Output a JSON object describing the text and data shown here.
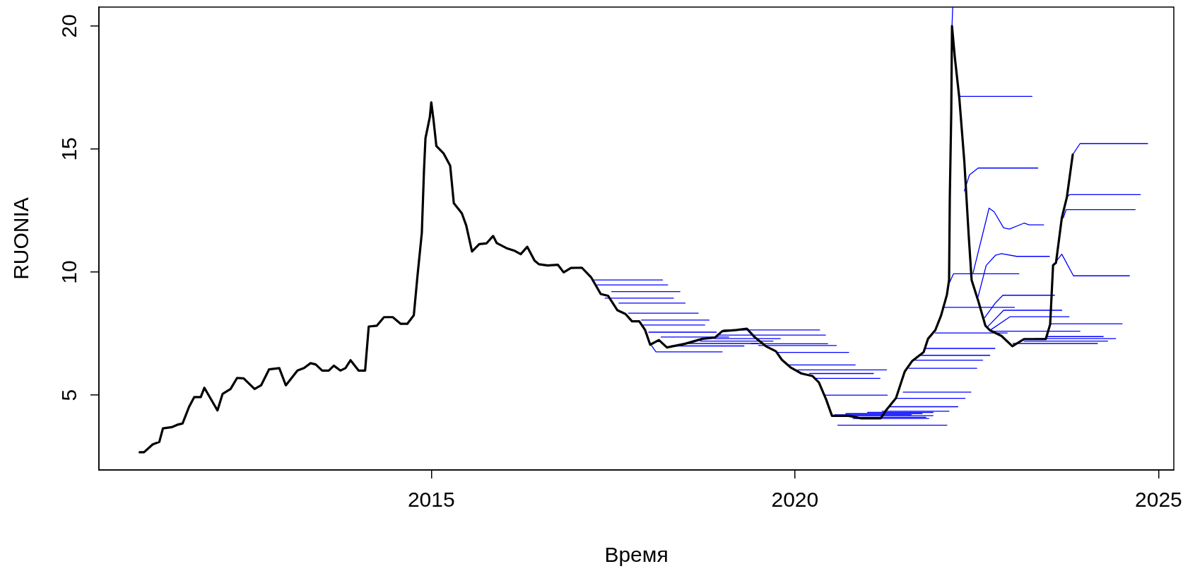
{
  "chart_data": {
    "type": "line",
    "xlabel": "Время",
    "ylabel": "RUONIA",
    "xlim": [
      2010.43,
      2025.21
    ],
    "ylim": [
      1.96,
      20.77
    ],
    "xticks": [
      2015,
      2020,
      2025
    ],
    "yticks": [
      5,
      10,
      15,
      20
    ],
    "grid": false,
    "legend": false,
    "series": [
      {
        "color": "#000000",
        "x": [
          2010.99,
          2011.05,
          2011.17,
          2011.26,
          2011.31,
          2011.43,
          2011.51,
          2011.58,
          2011.67,
          2011.74,
          2011.83,
          2011.88,
          2012.06,
          2012.13,
          2012.24,
          2012.33,
          2012.42,
          2012.57,
          2012.66,
          2012.77,
          2012.91,
          2013.0,
          2013.16,
          2013.25,
          2013.34,
          2013.41,
          2013.5,
          2013.59,
          2013.66,
          2013.75,
          2013.82,
          2013.89,
          2014.0,
          2014.09,
          2014.14,
          2014.25,
          2014.35,
          2014.47,
          2014.58,
          2014.67,
          2014.76,
          2014.81,
          2014.87,
          2014.9,
          2014.92,
          2014.98,
          2015.0,
          2015.03,
          2015.07,
          2015.17,
          2015.26,
          2015.31,
          2015.42,
          2015.48,
          2015.56,
          2015.66,
          2015.76,
          2015.85,
          2015.9,
          2016.03,
          2016.15,
          2016.23,
          2016.32,
          2016.42,
          2016.48,
          2016.6,
          2016.74,
          2016.82,
          2016.92,
          2017.07,
          2017.2,
          2017.28,
          2017.33,
          2017.43,
          2017.56,
          2017.67,
          2017.76,
          2017.86,
          2017.94,
          2018.01,
          2018.13,
          2018.24,
          2018.49,
          2018.73,
          2018.9,
          2019.0,
          2019.2,
          2019.34,
          2019.45,
          2019.6,
          2019.74,
          2019.82,
          2019.94,
          2020.09,
          2020.24,
          2020.33,
          2020.43,
          2020.51,
          2020.74,
          2020.91,
          2021.18,
          2021.26,
          2021.39,
          2021.51,
          2021.61,
          2021.77,
          2021.83,
          2021.93,
          2022.01,
          2022.09,
          2022.12,
          2022.13,
          2022.15,
          2022.16,
          2022.2,
          2022.26,
          2022.33,
          2022.39,
          2022.43,
          2022.52,
          2022.62,
          2022.68,
          2022.84,
          2022.99,
          2023.15,
          2023.45,
          2023.51,
          2023.55,
          2023.59,
          2023.67,
          2023.74,
          2023.82
        ],
        "values": [
          2.68,
          2.68,
          3.0,
          3.1,
          3.65,
          3.7,
          3.8,
          3.85,
          4.53,
          4.92,
          4.92,
          5.3,
          4.38,
          5.05,
          5.25,
          5.7,
          5.68,
          5.25,
          5.4,
          6.05,
          6.1,
          5.4,
          6.0,
          6.1,
          6.3,
          6.25,
          6.0,
          6.0,
          6.2,
          6.0,
          6.1,
          6.42,
          6.0,
          6.0,
          7.79,
          7.82,
          8.17,
          8.17,
          7.9,
          7.9,
          8.25,
          9.84,
          11.6,
          14.15,
          15.44,
          16.3,
          16.9,
          16.2,
          15.12,
          14.82,
          14.32,
          12.8,
          12.39,
          11.9,
          10.84,
          11.14,
          11.17,
          11.47,
          11.18,
          10.98,
          10.86,
          10.73,
          11.03,
          10.47,
          10.32,
          10.27,
          10.3,
          9.99,
          10.17,
          10.18,
          9.78,
          9.37,
          9.11,
          9.04,
          8.45,
          8.3,
          8.0,
          8.0,
          7.65,
          7.05,
          7.24,
          6.94,
          7.09,
          7.29,
          7.34,
          7.6,
          7.65,
          7.7,
          7.35,
          6.99,
          6.78,
          6.44,
          6.13,
          5.88,
          5.78,
          5.52,
          4.82,
          4.16,
          4.16,
          4.06,
          4.06,
          4.41,
          4.88,
          5.96,
          6.38,
          6.75,
          7.29,
          7.64,
          8.24,
          9.08,
          9.68,
          13.05,
          16.5,
          20.0,
          18.7,
          17.1,
          14.48,
          11.48,
          9.68,
          8.84,
          7.82,
          7.64,
          7.41,
          6.99,
          7.28,
          7.28,
          7.88,
          10.28,
          10.38,
          12.2,
          13.05,
          14.77
        ]
      },
      {
        "color": "#0000ff",
        "x": [
          2017.22,
          2018.18
        ],
        "values": [
          9.68,
          9.68
        ]
      },
      {
        "color": "#0000ff",
        "x": [
          2017.28,
          2018.25
        ],
        "values": [
          9.48,
          9.48
        ]
      },
      {
        "color": "#0000ff",
        "x": [
          2017.39,
          2018.33
        ],
        "values": [
          8.94,
          8.94
        ]
      },
      {
        "color": "#0000ff",
        "x": [
          2017.48,
          2018.42
        ],
        "values": [
          9.21,
          9.21
        ]
      },
      {
        "color": "#0000ff",
        "x": [
          2017.58,
          2018.49
        ],
        "values": [
          8.74,
          8.74
        ]
      },
      {
        "color": "#0000ff",
        "x": [
          2017.71,
          2018.67
        ],
        "values": [
          8.33,
          8.33
        ]
      },
      {
        "color": "#0000ff",
        "x": [
          2017.89,
          2018.82
        ],
        "values": [
          8.05,
          8.05
        ]
      },
      {
        "color": "#0000ff",
        "x": [
          2017.9,
          2018.76
        ],
        "values": [
          7.85,
          7.85
        ]
      },
      {
        "color": "#0000ff",
        "x": [
          2017.99,
          2018.92
        ],
        "values": [
          7.56,
          7.56
        ]
      },
      {
        "color": "#0000ff",
        "x": [
          2018.16,
          2019.09
        ],
        "values": [
          7.36,
          7.36
        ]
      },
      {
        "color": "#0000ff",
        "x": [
          2018.02,
          2018.09,
          2019.0
        ],
        "values": [
          7.05,
          6.76,
          6.76
        ]
      },
      {
        "color": "#0000ff",
        "x": [
          2018.3,
          2019.3
        ],
        "values": [
          7.0,
          7.0
        ]
      },
      {
        "color": "#0000ff",
        "x": [
          2018.5,
          2019.5
        ],
        "values": [
          7.1,
          7.1
        ]
      },
      {
        "color": "#0000ff",
        "x": [
          2018.7,
          2019.7
        ],
        "values": [
          7.2,
          7.2
        ]
      },
      {
        "color": "#0000ff",
        "x": [
          2018.9,
          2019.8
        ],
        "values": [
          7.3,
          7.3
        ]
      },
      {
        "color": "#0000ff",
        "x": [
          2019.02,
          2020.34
        ],
        "values": [
          7.65,
          7.65
        ]
      },
      {
        "color": "#0000ff",
        "x": [
          2018.93,
          2020.42
        ],
        "values": [
          7.44,
          7.44
        ]
      },
      {
        "color": "#0000ff",
        "x": [
          2019.4,
          2020.45
        ],
        "values": [
          7.09,
          7.09
        ]
      },
      {
        "color": "#0000ff",
        "x": [
          2019.5,
          2020.57
        ],
        "values": [
          7.02,
          7.02
        ]
      },
      {
        "color": "#0000ff",
        "x": [
          2019.74,
          2020.74
        ],
        "values": [
          6.74,
          6.74
        ]
      },
      {
        "color": "#0000ff",
        "x": [
          2019.9,
          2020.83
        ],
        "values": [
          6.23,
          6.23
        ]
      },
      {
        "color": "#0000ff",
        "x": [
          2020.04,
          2021.26
        ],
        "values": [
          6.03,
          6.03
        ]
      },
      {
        "color": "#0000ff",
        "x": [
          2020.2,
          2021.08
        ],
        "values": [
          5.88,
          5.88
        ]
      },
      {
        "color": "#0000ff",
        "x": [
          2020.26,
          2021.17
        ],
        "values": [
          5.68,
          5.68
        ]
      },
      {
        "color": "#0000ff",
        "x": [
          2020.4,
          2021.27
        ],
        "values": [
          5.0,
          5.0
        ]
      },
      {
        "color": "#0000ff",
        "x": [
          2020.59,
          2022.09
        ],
        "values": [
          3.78,
          3.78
        ]
      },
      {
        "color": "#0000ff",
        "x": [
          2020.55,
          2021.6
        ],
        "values": [
          4.2,
          4.2
        ]
      },
      {
        "color": "#0000ff",
        "x": [
          2020.6,
          2021.9
        ],
        "values": [
          4.17,
          4.17
        ]
      },
      {
        "color": "#0000ff",
        "x": [
          2020.7,
          2021.75
        ],
        "values": [
          4.25,
          4.25
        ]
      },
      {
        "color": "#0000ff",
        "x": [
          2020.8,
          2021.84
        ],
        "values": [
          4.05,
          4.05
        ]
      },
      {
        "color": "#0000ff",
        "x": [
          2020.9,
          2021.8
        ],
        "values": [
          4.1,
          4.1
        ]
      },
      {
        "color": "#0000ff",
        "x": [
          2021.0,
          2021.9
        ],
        "values": [
          4.3,
          4.3
        ]
      },
      {
        "color": "#0000ff",
        "x": [
          2021.2,
          2022.12
        ],
        "values": [
          4.35,
          4.35
        ]
      },
      {
        "color": "#0000ff",
        "x": [
          2021.3,
          2022.24
        ],
        "values": [
          4.53,
          4.53
        ]
      },
      {
        "color": "#0000ff",
        "x": [
          2021.39,
          2022.34
        ],
        "values": [
          4.87,
          4.87
        ]
      },
      {
        "color": "#0000ff",
        "x": [
          2021.49,
          2022.42
        ],
        "values": [
          5.12,
          5.12
        ]
      },
      {
        "color": "#0000ff",
        "x": [
          2021.57,
          2022.5
        ],
        "values": [
          6.09,
          6.09
        ]
      },
      {
        "color": "#0000ff",
        "x": [
          2021.65,
          2022.58
        ],
        "values": [
          6.42,
          6.42
        ]
      },
      {
        "color": "#0000ff",
        "x": [
          2021.7,
          2022.68
        ],
        "values": [
          6.62,
          6.62
        ]
      },
      {
        "color": "#0000ff",
        "x": [
          2021.8,
          2022.75
        ],
        "values": [
          6.9,
          6.9
        ]
      },
      {
        "color": "#0000ff",
        "x": [
          2021.93,
          2022.92
        ],
        "values": [
          7.53,
          7.53
        ]
      },
      {
        "color": "#0000ff",
        "x": [
          2022.03,
          2023.02
        ],
        "values": [
          8.57,
          8.57
        ]
      },
      {
        "color": "#0000ff",
        "x": [
          2022.13,
          2022.18,
          2023.08
        ],
        "values": [
          9.6,
          9.93,
          9.93
        ]
      },
      {
        "color": "#0000ff",
        "x": [
          2022.16,
          2022.17
        ],
        "values": [
          20.0,
          20.75
        ]
      },
      {
        "color": "#0000ff",
        "x": [
          2022.26,
          2023.26
        ],
        "values": [
          17.14,
          17.14
        ]
      },
      {
        "color": "#0000ff",
        "x": [
          2022.33,
          2022.4,
          2022.52,
          2023.34
        ],
        "values": [
          13.3,
          13.95,
          14.23,
          14.23
        ]
      },
      {
        "color": "#0000ff",
        "x": [
          2022.45,
          2022.67,
          2022.74,
          2022.87,
          2022.95,
          2023.15,
          2023.22,
          2023.42
        ],
        "values": [
          9.97,
          12.6,
          12.45,
          11.8,
          11.75,
          11.99,
          11.92,
          11.92
        ]
      },
      {
        "color": "#0000ff",
        "x": [
          2022.52,
          2022.63,
          2022.76,
          2022.84,
          2023.05,
          2023.5
        ],
        "values": [
          9.01,
          10.27,
          10.69,
          10.75,
          10.64,
          10.64
        ]
      },
      {
        "color": "#0000ff",
        "x": [
          2022.61,
          2022.76,
          2022.86,
          2023.57
        ],
        "values": [
          8.15,
          8.76,
          9.06,
          9.06
        ]
      },
      {
        "color": "#0000ff",
        "x": [
          2022.64,
          2022.87,
          2023.67
        ],
        "values": [
          7.75,
          8.45,
          8.45
        ]
      },
      {
        "color": "#0000ff",
        "x": [
          2022.69,
          2022.96,
          2023.77
        ],
        "values": [
          7.65,
          8.19,
          8.19
        ]
      },
      {
        "color": "#0000ff",
        "x": [
          2022.7,
          2023.92
        ],
        "values": [
          7.6,
          7.6
        ]
      },
      {
        "color": "#0000ff",
        "x": [
          2023.0,
          2024.16
        ],
        "values": [
          7.1,
          7.1
        ]
      },
      {
        "color": "#0000ff",
        "x": [
          2023.15,
          2024.3
        ],
        "values": [
          7.2,
          7.2
        ]
      },
      {
        "color": "#0000ff",
        "x": [
          2023.3,
          2024.41
        ],
        "values": [
          7.3,
          7.3
        ]
      },
      {
        "color": "#0000ff",
        "x": [
          2023.45,
          2024.24
        ],
        "values": [
          7.38,
          7.38
        ]
      },
      {
        "color": "#0000ff",
        "x": [
          2023.52,
          2024.5
        ],
        "values": [
          7.9,
          7.9
        ]
      },
      {
        "color": "#0000ff",
        "x": [
          2023.59,
          2023.67,
          2023.83,
          2024.6
        ],
        "values": [
          10.43,
          10.73,
          9.85,
          9.85
        ]
      },
      {
        "color": "#0000ff",
        "x": [
          2023.69,
          2023.73,
          2024.68
        ],
        "values": [
          12.2,
          12.54,
          12.54
        ]
      },
      {
        "color": "#0000ff",
        "x": [
          2023.74,
          2023.78,
          2024.75
        ],
        "values": [
          13.05,
          13.15,
          13.15
        ]
      },
      {
        "color": "#0000ff",
        "x": [
          2023.82,
          2023.92,
          2024.85
        ],
        "values": [
          14.77,
          15.22,
          15.22
        ]
      }
    ]
  }
}
